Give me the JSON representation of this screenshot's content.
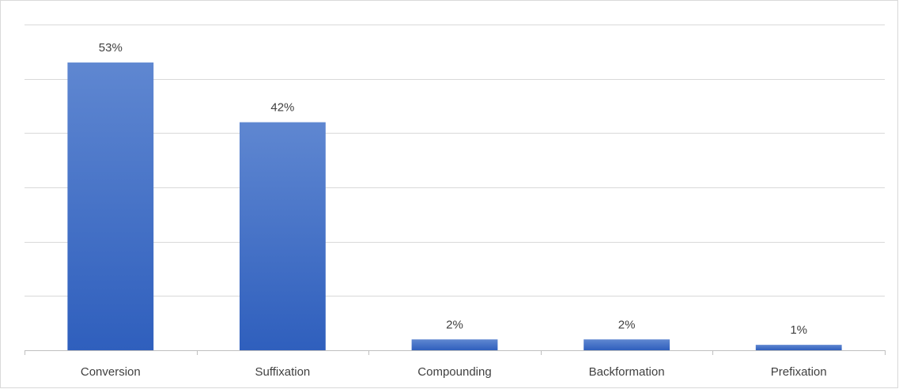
{
  "chart_data": {
    "type": "bar",
    "categories": [
      "Conversion",
      "Suffixation",
      "Compounding",
      "Backformation",
      "Prefixation"
    ],
    "values": [
      53,
      42,
      2,
      2,
      1
    ],
    "data_labels": [
      "53%",
      "42%",
      "2%",
      "2%",
      "1%"
    ],
    "title": "",
    "xlabel": "",
    "ylabel": "",
    "ylim": [
      0,
      60
    ],
    "y_gridline_step": 10,
    "grid": true,
    "legend": "none",
    "bar_color_top": "#5f87d1",
    "bar_color_bottom": "#2f5fbd"
  }
}
